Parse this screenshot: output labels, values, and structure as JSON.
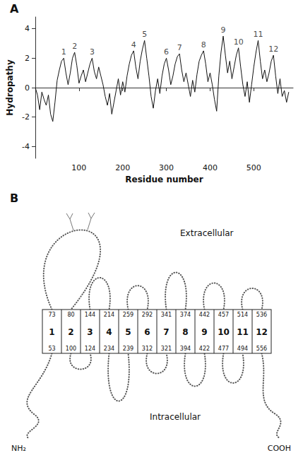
{
  "chart_data": {
    "type": "line",
    "panel_label": "A",
    "y_label": "Hydropathy",
    "x_label": "Residue number",
    "x": [
      0,
      5,
      10,
      15,
      20,
      25,
      30,
      35,
      40,
      45,
      50,
      55,
      60,
      65,
      70,
      75,
      80,
      85,
      90,
      95,
      100,
      105,
      110,
      115,
      120,
      125,
      130,
      135,
      140,
      145,
      150,
      155,
      160,
      165,
      170,
      175,
      180,
      185,
      190,
      195,
      200,
      205,
      210,
      215,
      220,
      225,
      230,
      235,
      240,
      245,
      250,
      255,
      260,
      265,
      270,
      275,
      280,
      285,
      290,
      295,
      300,
      305,
      310,
      315,
      320,
      325,
      330,
      335,
      340,
      345,
      350,
      355,
      360,
      365,
      370,
      375,
      380,
      385,
      390,
      395,
      400,
      405,
      410,
      415,
      420,
      425,
      430,
      435,
      440,
      445,
      450,
      455,
      460,
      465,
      470,
      475,
      480,
      485,
      490,
      495,
      500,
      505,
      510,
      515,
      520,
      525,
      530,
      535,
      540,
      545,
      550,
      555,
      560,
      565,
      570,
      575,
      580
    ],
    "values": [
      0,
      -0.5,
      -1.5,
      -0.3,
      -0.8,
      -1.2,
      -0.5,
      -1.8,
      -2.3,
      -1.0,
      0.5,
      1.2,
      1.8,
      2.0,
      1.0,
      0.2,
      1.0,
      2.0,
      2.4,
      1.5,
      0.3,
      0.8,
      1.2,
      0.4,
      1.0,
      1.6,
      2.0,
      1.1,
      0.6,
      1.4,
      0.8,
      0.2,
      -0.6,
      -1.2,
      -0.4,
      -1.8,
      -1.0,
      -0.2,
      0.6,
      -0.5,
      0.4,
      -0.3,
      0.8,
      1.6,
      2.2,
      2.5,
      1.4,
      0.6,
      1.8,
      2.6,
      3.2,
      2.0,
      0.8,
      -0.6,
      -1.4,
      -0.2,
      0.6,
      -0.4,
      0.8,
      1.6,
      2.0,
      1.2,
      0.2,
      0.8,
      1.6,
      2.1,
      2.3,
      1.2,
      0.4,
      1.0,
      0.2,
      -0.6,
      0.5,
      -0.3,
      0.9,
      1.8,
      2.2,
      2.5,
      1.6,
      0.4,
      1.0,
      0.2,
      -0.8,
      -1.6,
      0.8,
      2.4,
      3.5,
      2.2,
      1.0,
      1.8,
      0.6,
      1.4,
      2.2,
      2.7,
      1.4,
      0.2,
      -0.6,
      0.4,
      -1.0,
      0.2,
      1.4,
      2.4,
      3.2,
      1.8,
      0.6,
      1.2,
      0.4,
      1.0,
      1.8,
      2.2,
      0.8,
      -0.4,
      0.6,
      -0.6,
      -0.2,
      -1.0,
      -0.3
    ],
    "color": "#111111",
    "xlim": [
      0,
      590
    ],
    "ylim": [
      -4.8,
      4.8
    ],
    "xticks": [
      100,
      200,
      300,
      400,
      500
    ],
    "yticks": [
      -4,
      -2,
      0,
      2,
      4
    ],
    "grid": false,
    "annotations": [
      {
        "text": "1",
        "x": 65,
        "y": 2.0
      },
      {
        "text": "2",
        "x": 90,
        "y": 2.4
      },
      {
        "text": "3",
        "x": 130,
        "y": 2.0
      },
      {
        "text": "4",
        "x": 225,
        "y": 2.5
      },
      {
        "text": "5",
        "x": 250,
        "y": 3.2
      },
      {
        "text": "6",
        "x": 300,
        "y": 2.0
      },
      {
        "text": "7",
        "x": 330,
        "y": 2.3
      },
      {
        "text": "8",
        "x": 385,
        "y": 2.5
      },
      {
        "text": "9",
        "x": 430,
        "y": 3.5
      },
      {
        "text": "10",
        "x": 465,
        "y": 2.7
      },
      {
        "text": "11",
        "x": 510,
        "y": 3.2
      },
      {
        "text": "12",
        "x": 545,
        "y": 2.2
      }
    ]
  },
  "diagram": {
    "panel_label": "B",
    "regions": {
      "extracellular": "Extracellular",
      "intracellular": "Intracellular"
    },
    "termini": {
      "n": "NH₂",
      "c": "COOH"
    },
    "segments": [
      {
        "label": "1",
        "top": 73,
        "bottom": 53
      },
      {
        "label": "2",
        "top": 80,
        "bottom": 100
      },
      {
        "label": "3",
        "top": 144,
        "bottom": 124
      },
      {
        "label": "4",
        "top": 214,
        "bottom": 234
      },
      {
        "label": "5",
        "top": 259,
        "bottom": 239
      },
      {
        "label": "6",
        "top": 292,
        "bottom": 312
      },
      {
        "label": "7",
        "top": 341,
        "bottom": 321
      },
      {
        "label": "8",
        "top": 374,
        "bottom": 394
      },
      {
        "label": "9",
        "top": 442,
        "bottom": 422
      },
      {
        "label": "10",
        "top": 457,
        "bottom": 477
      },
      {
        "label": "11",
        "top": 514,
        "bottom": 494
      },
      {
        "label": "12",
        "top": 536,
        "bottom": 556
      }
    ]
  }
}
